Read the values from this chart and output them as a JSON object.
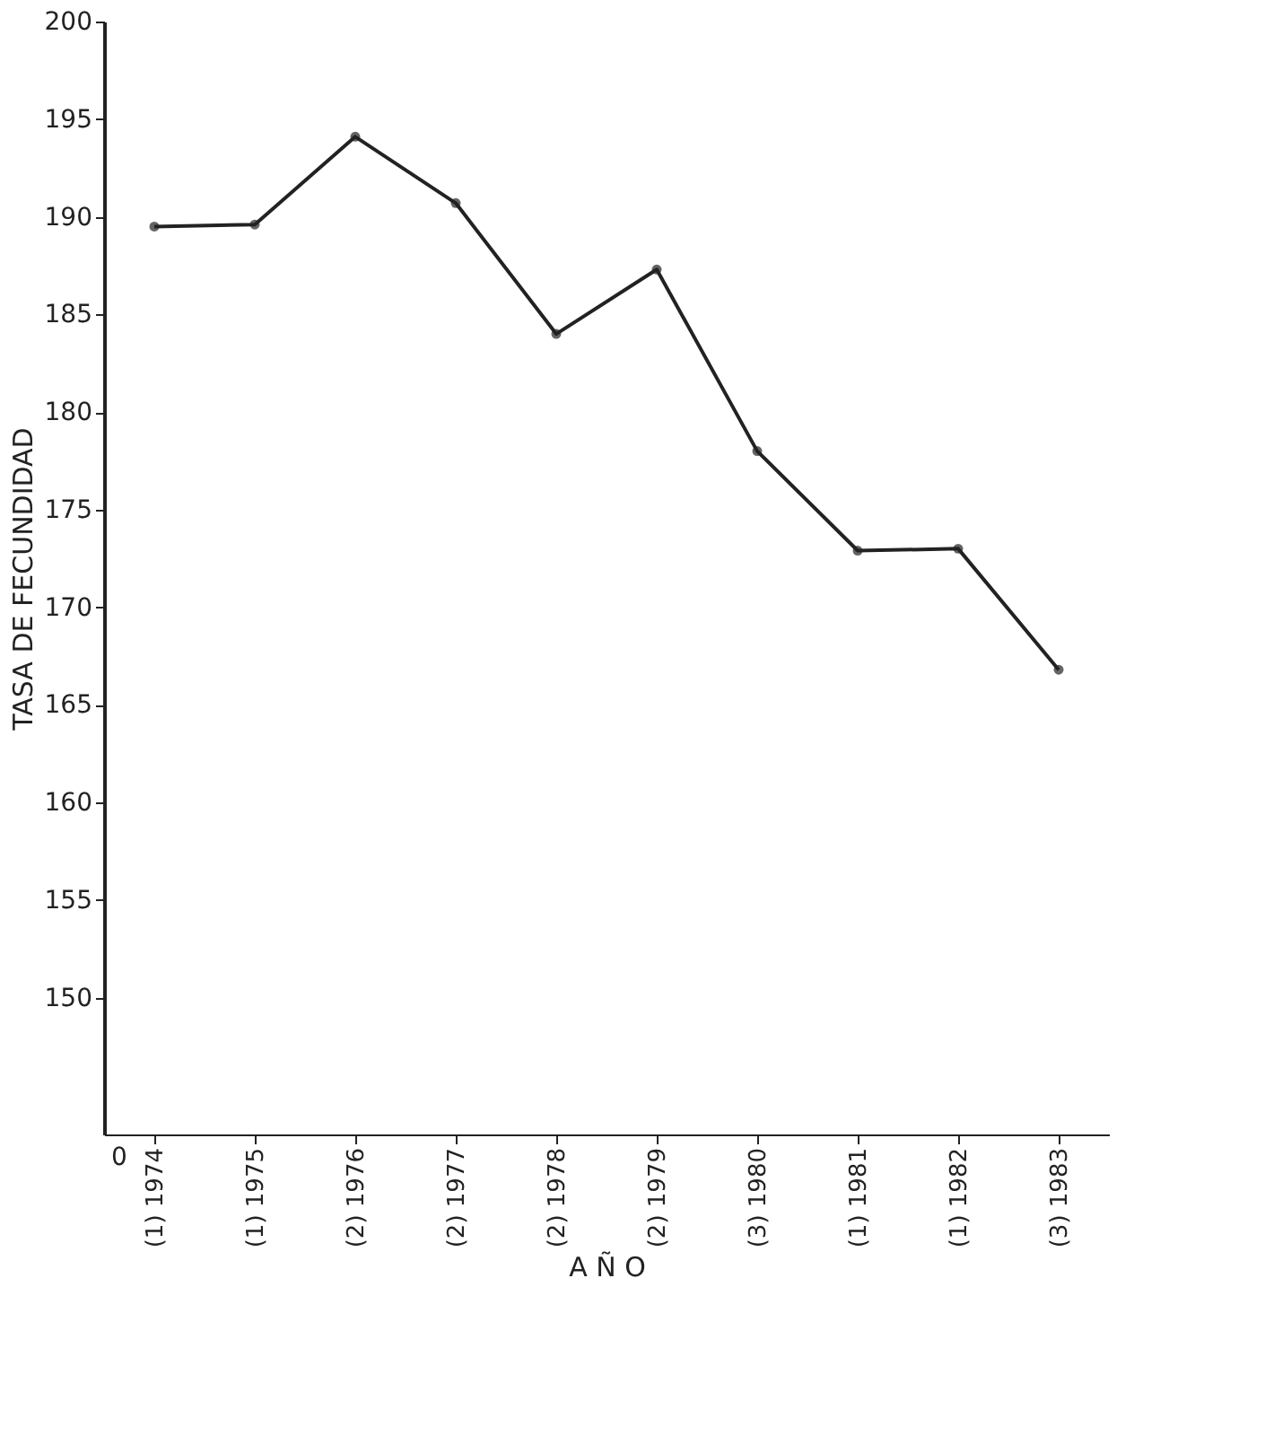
{
  "chart_data": {
    "type": "line",
    "xlabel": "A Ñ O",
    "ylabel": "TASA DE FECUNDIDAD",
    "categories": [
      "(1) 1974",
      "(1) 1975",
      "(2) 1976",
      "(2) 1977",
      "(2) 1978",
      "(2) 1979",
      "(3) 1980",
      "(1) 1981",
      "(1) 1982",
      "(3) 1983"
    ],
    "series": [
      {
        "color": "#222222",
        "values": [
          189.5,
          189.6,
          194.1,
          190.7,
          184.0,
          187.3,
          178.0,
          172.9,
          173.0,
          166.8
        ]
      }
    ],
    "ylim": [
      143,
      200
    ],
    "yticks": [
      150,
      155,
      160,
      165,
      170,
      175,
      180,
      185,
      190,
      195,
      200
    ],
    "annotations": [
      "0"
    ],
    "marker": "circle",
    "line_style": "solid",
    "grid": false,
    "legend": false
  }
}
